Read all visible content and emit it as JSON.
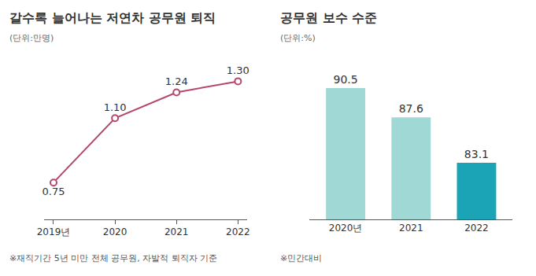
{
  "chart_data": [
    {
      "type": "line",
      "title": "갈수록 늘어나는 저연차 공무원 퇴직",
      "subtitle": "(단위:만명)",
      "categories": [
        "2019년",
        "2020",
        "2021",
        "2022"
      ],
      "values": [
        0.75,
        1.1,
        1.24,
        1.3
      ],
      "value_labels": [
        "0.75",
        "1.10",
        "1.24",
        "1.30"
      ],
      "data_labels": true,
      "color": "#b5476a",
      "marker": "circle",
      "ylim": [
        0.55,
        1.4
      ],
      "tick_labels": "x",
      "grid": false,
      "annotations": [
        "※재직기간 5년 미만 전체 공무원, 자발적 퇴직자 기준"
      ]
    },
    {
      "type": "bar",
      "title": "공무원 보수 수준",
      "subtitle": "(단위:%)",
      "categories": [
        "2020년",
        "2021",
        "2022"
      ],
      "values": [
        90.5,
        87.6,
        83.1
      ],
      "data_labels": true,
      "colors": [
        "#9fd8d4",
        "#9fd8d4",
        "#1ba3b6"
      ],
      "ylim": [
        77.5,
        93
      ],
      "tick_labels": "x",
      "grid": false,
      "annotations": [
        "※민간대비"
      ]
    }
  ]
}
